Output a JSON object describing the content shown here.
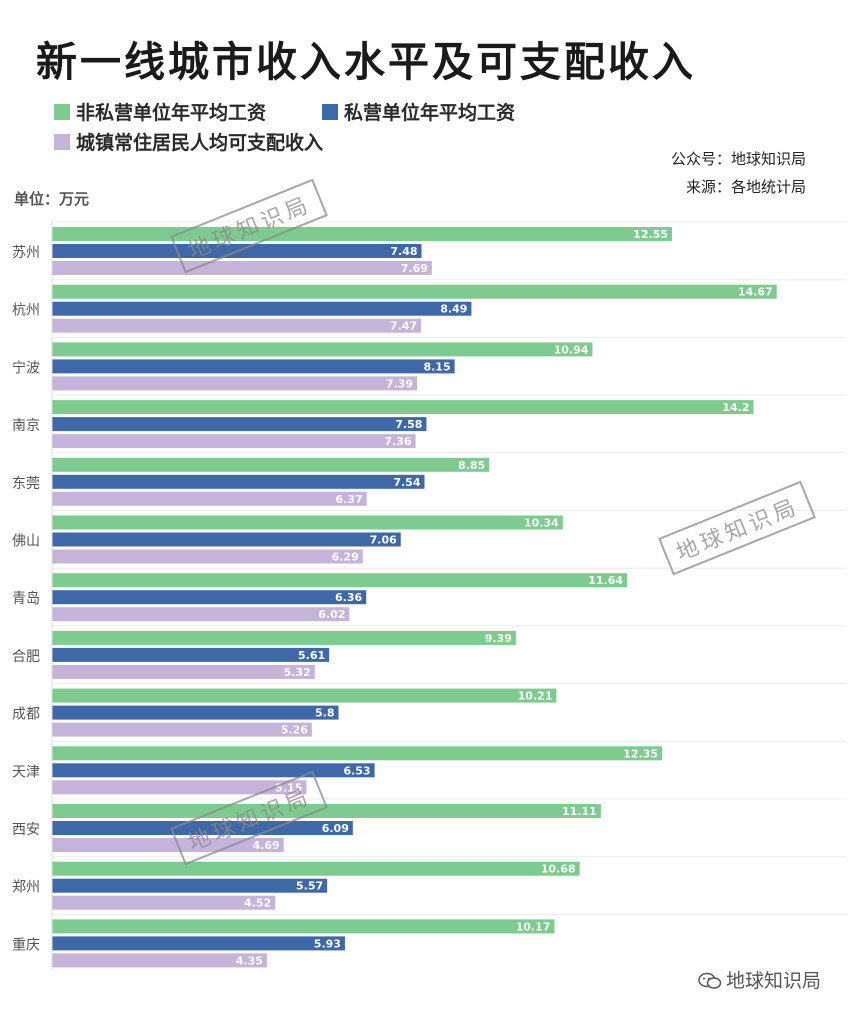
{
  "title": "新一线城市收入水平及可支配收入",
  "legend": [
    {
      "label": "非私营单位年平均工资",
      "color": "#7dcb8e"
    },
    {
      "label": "私营单位年平均工资",
      "color": "#3f68a8"
    },
    {
      "label": "城镇常住居民人均可支配收入",
      "color": "#c5b3d9"
    }
  ],
  "info": {
    "account": "公众号：地球知识局",
    "source": "来源：各地统计局"
  },
  "unit": "单位：万元",
  "watermark": "地球知识局",
  "wechat_label": "地球知识局",
  "wechat_icon": "wechat-icon",
  "chart_data": {
    "type": "bar",
    "orientation": "horizontal",
    "categories": [
      "苏州",
      "杭州",
      "宁波",
      "南京",
      "东莞",
      "佛山",
      "青岛",
      "合肥",
      "成都",
      "天津",
      "西安",
      "郑州",
      "重庆"
    ],
    "series": [
      {
        "name": "非私营单位年平均工资",
        "color": "#7dcb8e",
        "values": [
          12.55,
          14.67,
          10.94,
          14.2,
          8.85,
          10.34,
          11.64,
          9.39,
          10.21,
          12.35,
          11.11,
          10.68,
          10.17
        ]
      },
      {
        "name": "私营单位年平均工资",
        "color": "#3f68a8",
        "values": [
          7.48,
          8.49,
          8.15,
          7.58,
          7.54,
          7.06,
          6.36,
          5.61,
          5.8,
          6.53,
          6.09,
          5.57,
          5.93
        ]
      },
      {
        "name": "城镇常住居民人均可支配收入",
        "color": "#c5b3d9",
        "values": [
          7.69,
          7.47,
          7.39,
          7.36,
          6.37,
          6.29,
          6.02,
          5.32,
          5.26,
          5.15,
          4.69,
          4.52,
          4.35
        ]
      }
    ],
    "xlim": [
      0,
      16
    ],
    "grid": true,
    "legend_position": "top-left"
  }
}
